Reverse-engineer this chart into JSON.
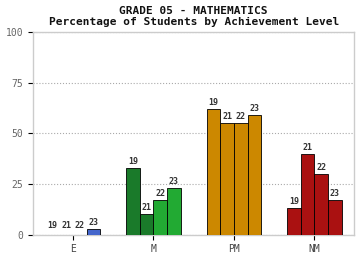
{
  "title_line1": "GRADE 05 - MATHEMATICS",
  "title_line2": "Percentage of Students by Achievement Level",
  "groups": [
    "E",
    "M",
    "PM",
    "NM"
  ],
  "years": [
    "19",
    "21",
    "22",
    "23"
  ],
  "values": {
    "E": [
      0,
      0,
      0,
      3
    ],
    "M": [
      33,
      10,
      17,
      23
    ],
    "PM": [
      62,
      55,
      55,
      59
    ],
    "NM": [
      13,
      40,
      30,
      17
    ]
  },
  "color_map": {
    "E": [
      "#2244aa",
      "#2244aa",
      "#2244aa",
      "#4466cc"
    ],
    "M": [
      "#1a7a2a",
      "#1a7a2a",
      "#22aa33",
      "#22aa33"
    ],
    "PM": [
      "#cc8800",
      "#cc8800",
      "#cc8800",
      "#cc8800"
    ],
    "NM": [
      "#aa1111",
      "#aa1111",
      "#aa1111",
      "#aa1111"
    ]
  },
  "ylim": [
    0,
    100
  ],
  "yticks": [
    0,
    25,
    50,
    75,
    100
  ],
  "background_color": "#ffffff",
  "frame_color": "#cccccc",
  "bar_width": 0.17,
  "font_family": "monospace",
  "title_fontsize": 8,
  "label_fontsize": 6,
  "tick_fontsize": 7,
  "group_positions": [
    0.5,
    1.5,
    2.5,
    3.5
  ]
}
